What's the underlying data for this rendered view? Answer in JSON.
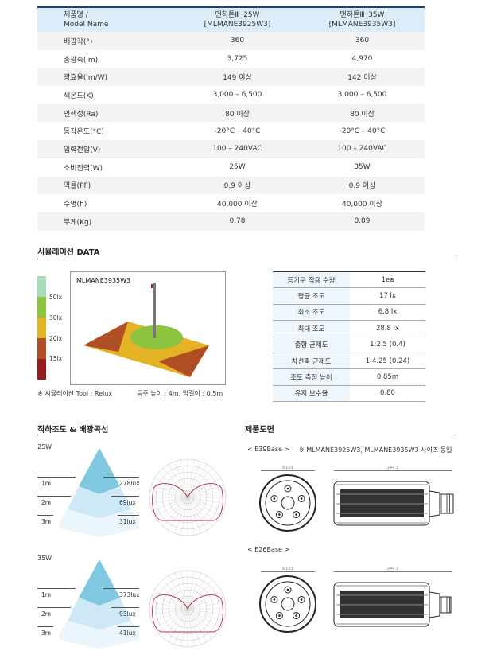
{
  "spec": {
    "header": {
      "label": "제품명 /",
      "label2": "Model Name",
      "col1": "맨하튼Ⅲ_25W",
      "col1b": "[MLMANE3925W3]",
      "col2": "맨하튼Ⅲ_35W",
      "col2b": "[MLMANE3935W3]"
    },
    "rows": [
      {
        "k": "배광각(°)",
        "a": "360",
        "b": "360"
      },
      {
        "k": "총광속(lm)",
        "a": "3,725",
        "b": "4,970"
      },
      {
        "k": "광효율(lm/W)",
        "a": "149 이상",
        "b": "142 이상"
      },
      {
        "k": "색온도(K)",
        "a": "3,000 – 6,500",
        "b": "3,000 – 6,500"
      },
      {
        "k": "연색성(Ra)",
        "a": "80 이상",
        "b": "80 이상"
      },
      {
        "k": "동작온도(°C)",
        "a": "-20°C – 40°C",
        "b": "-20°C – 40°C"
      },
      {
        "k": "입력전압(V)",
        "a": "100 – 240VAC",
        "b": "100 – 240VAC"
      },
      {
        "k": "소비전력(W)",
        "a": "25W",
        "b": "35W"
      },
      {
        "k": "역률(PF)",
        "a": "0.9 이상",
        "b": "0.9 이상"
      },
      {
        "k": "수명(h)",
        "a": "40,000 이상",
        "b": "40,000 이상"
      },
      {
        "k": "무게(Kg)",
        "a": "0.78",
        "b": "0.89"
      }
    ]
  },
  "simulation": {
    "title": "시뮬레이션 DATA",
    "model": "MLMANE3935W3",
    "legend": [
      "50lx",
      "30lx",
      "20lx",
      "15lx"
    ],
    "legend_colors": [
      "#a6dbb8",
      "#8cc43f",
      "#e3b225",
      "#b04e25",
      "#981b1e"
    ],
    "tool": "※ 시뮬레이션 Tool : Relux",
    "pole": "등주 높이 : 4m, 암길이 : 0.5m",
    "table": [
      {
        "k": "등기구 적용 수량",
        "v": "1ea"
      },
      {
        "k": "평균 조도",
        "v": "17 lx"
      },
      {
        "k": "최소 조도",
        "v": "6.8 lx"
      },
      {
        "k": "최대 조도",
        "v": "28.8 lx"
      },
      {
        "k": "종합 균제도",
        "v": "1:2.5 (0.4)"
      },
      {
        "k": "차선축 균제도",
        "v": "1:4.25 (0.24)"
      },
      {
        "k": "조도 측정 높이",
        "v": "0.85m"
      },
      {
        "k": "유지 보수율",
        "v": "0.80"
      }
    ]
  },
  "illum": {
    "title": "직하조도 & 배광곡선",
    "groups": [
      {
        "label": "25W",
        "rows": [
          {
            "d": "1m",
            "l": "278lux"
          },
          {
            "d": "2m",
            "l": "69lux"
          },
          {
            "d": "3m",
            "l": "31lux"
          }
        ]
      },
      {
        "label": "35W",
        "rows": [
          {
            "d": "1m",
            "l": "373lux"
          },
          {
            "d": "2m",
            "l": "93lux"
          },
          {
            "d": "3m",
            "l": "41lux"
          }
        ]
      }
    ]
  },
  "drawing": {
    "title": "제품도면",
    "e39": "< E39Base >",
    "note": "※ MLMANE3925W3, MLMANE3935W3 사이즈 동일",
    "e26": "< E26Base >",
    "dim1": "Ø103",
    "dim2": "244.3"
  }
}
